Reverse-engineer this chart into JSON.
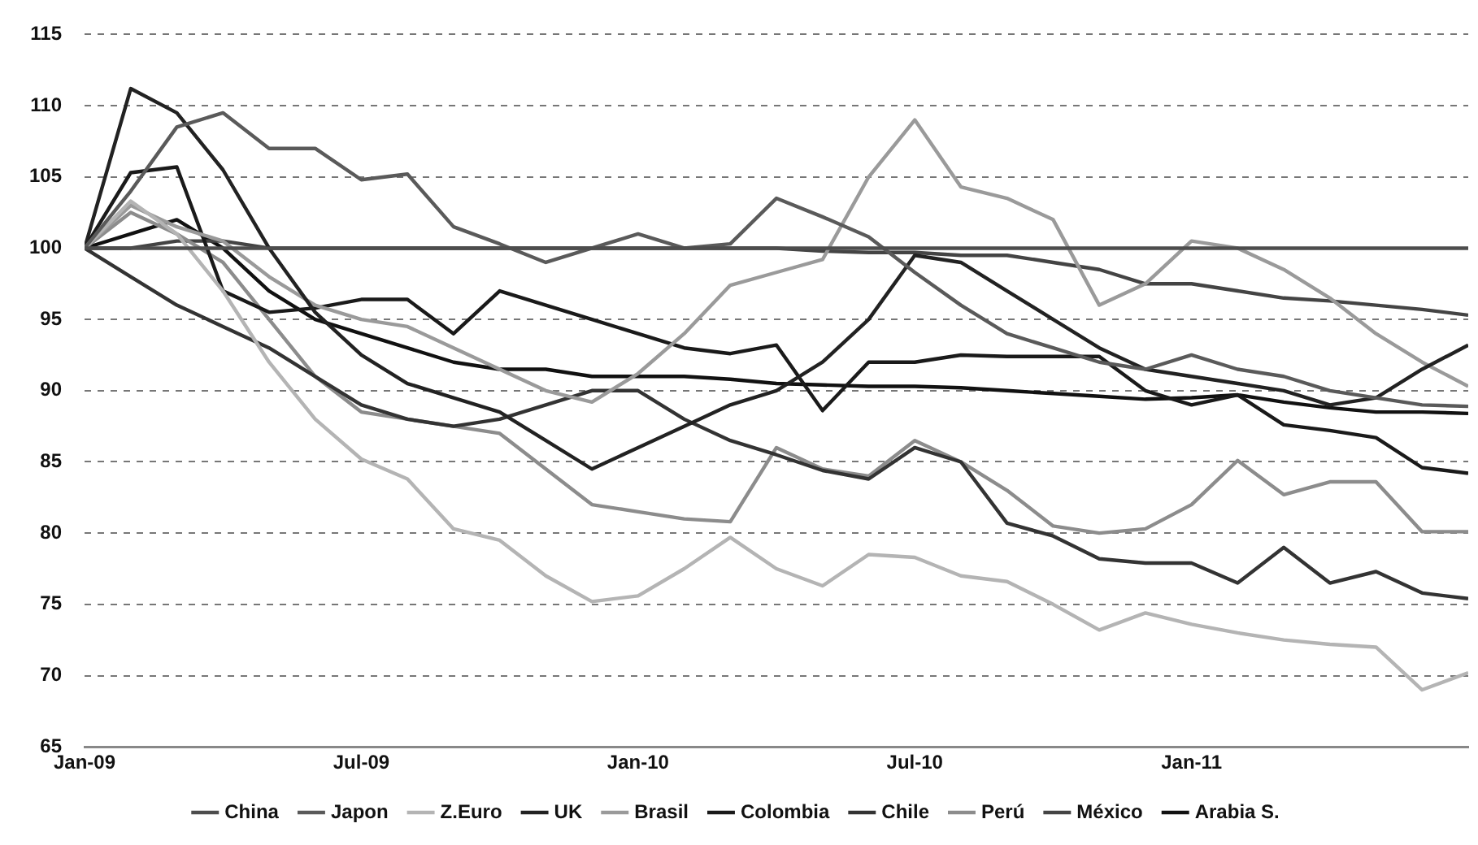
{
  "chart_data": {
    "type": "line",
    "x": [
      "2009-01",
      "2009-02",
      "2009-03",
      "2009-04",
      "2009-05",
      "2009-06",
      "2009-07",
      "2009-08",
      "2009-09",
      "2009-10",
      "2009-11",
      "2009-12",
      "2010-01",
      "2010-02",
      "2010-03",
      "2010-04",
      "2010-05",
      "2010-06",
      "2010-07",
      "2010-08",
      "2010-09",
      "2010-10",
      "2010-11",
      "2010-12",
      "2011-01",
      "2011-02",
      "2011-03",
      "2011-04",
      "2011-05",
      "2011-06",
      "2011-07"
    ],
    "series": [
      {
        "name": "China",
        "color": "#4d4d4d",
        "values": [
          100,
          100,
          100,
          100,
          100,
          100,
          100,
          100,
          100,
          100,
          100,
          100,
          100,
          100,
          100,
          100,
          100,
          100,
          100,
          100,
          100,
          100,
          100,
          100,
          100,
          100,
          100,
          100,
          100,
          100,
          100
        ]
      },
      {
        "name": "Japon",
        "color": "#5a5a5a",
        "values": [
          100,
          104,
          108.5,
          109.5,
          107,
          107,
          104.8,
          105.2,
          101.5,
          100.3,
          99,
          100,
          101,
          100,
          100.3,
          103.5,
          102.2,
          100.8,
          98.3,
          96,
          94,
          93,
          92,
          91.5,
          92.5,
          91.5,
          91,
          90,
          89.5,
          89,
          88.9
        ]
      },
      {
        "name": "Z.Euro",
        "color": "#b4b4b4",
        "values": [
          100,
          103.3,
          101,
          97,
          92,
          88,
          85.2,
          83.8,
          80.3,
          79.5,
          77,
          75.2,
          75.6,
          77.5,
          79.7,
          77.5,
          76.3,
          78.5,
          78.3,
          77,
          76.6,
          75,
          73.2,
          74.4,
          73.6,
          73,
          72.5,
          72.2,
          72,
          69,
          70.2
        ]
      },
      {
        "name": "UK",
        "color": "#222222",
        "values": [
          100,
          111.2,
          109.5,
          105.5,
          100,
          95.5,
          92.5,
          90.5,
          89.5,
          88.5,
          86.5,
          84.5,
          86,
          87.5,
          89,
          90,
          92,
          95,
          99.5,
          99,
          97,
          95,
          93,
          91.5,
          91,
          90.5,
          90,
          89,
          89.5,
          91.5,
          93.2
        ]
      },
      {
        "name": "Brasil",
        "color": "#9a9a9a",
        "values": [
          100,
          103,
          101.5,
          100.5,
          98,
          96,
          95,
          94.5,
          93,
          91.5,
          90,
          89.2,
          91.2,
          94,
          97.4,
          98.3,
          99.2,
          105,
          109,
          104.3,
          103.5,
          102,
          96,
          97.5,
          100.5,
          100,
          98.5,
          96.5,
          94,
          92,
          90.3
        ]
      },
      {
        "name": "Colombia",
        "color": "#1a1a1a",
        "values": [
          100,
          105.3,
          105.7,
          97,
          95.5,
          95.8,
          96.4,
          96.4,
          94,
          97,
          96,
          95,
          94,
          93,
          92.6,
          93.2,
          88.6,
          92,
          92,
          92.5,
          92.4,
          92.4,
          92.4,
          90,
          89,
          89.7,
          87.6,
          87.2,
          86.7,
          84.6,
          84.2
        ]
      },
      {
        "name": "Chile",
        "color": "#333333",
        "values": [
          100,
          98,
          96,
          94.5,
          93,
          91,
          89,
          88,
          87.5,
          88,
          89,
          90,
          90,
          88,
          86.5,
          85.5,
          84.4,
          83.8,
          86,
          85,
          80.7,
          79.8,
          78.2,
          77.9,
          77.9,
          76.5,
          79,
          76.5,
          77.3,
          75.8,
          75.4
        ]
      },
      {
        "name": "Perú",
        "color": "#8c8c8c",
        "values": [
          100,
          102.5,
          101,
          99,
          95,
          91,
          88.5,
          88,
          87.5,
          87,
          84.5,
          82,
          81.5,
          81,
          80.8,
          86,
          84.5,
          84,
          86.5,
          85,
          83,
          80.5,
          80,
          80.3,
          82,
          85.1,
          82.7,
          83.6,
          83.6,
          80.1,
          80.1
        ]
      },
      {
        "name": "México",
        "color": "#444444",
        "values": [
          100,
          100,
          100.5,
          100.5,
          100,
          100,
          100,
          100,
          100,
          100,
          100,
          100,
          100,
          100,
          100,
          100,
          99.8,
          99.7,
          99.7,
          99.5,
          99.5,
          99,
          98.5,
          97.5,
          97.5,
          97,
          96.5,
          96.3,
          96,
          95.7,
          95.3
        ]
      },
      {
        "name": "Arabia S.",
        "color": "#111111",
        "values": [
          100,
          101,
          102,
          100,
          97,
          95,
          94,
          93,
          92,
          91.5,
          91.5,
          91,
          91,
          91,
          90.8,
          90.5,
          90.4,
          90.3,
          90.3,
          90.2,
          90,
          89.8,
          89.6,
          89.4,
          89.5,
          89.7,
          89.2,
          88.8,
          88.5,
          88.5,
          88.4
        ]
      }
    ],
    "xlim": [
      "2009-01",
      "2011-07"
    ],
    "xticks": [
      {
        "value": "2009-01",
        "label": "Jan-09"
      },
      {
        "value": "2009-07",
        "label": "Jul-09"
      },
      {
        "value": "2010-01",
        "label": "Jan-10"
      },
      {
        "value": "2010-07",
        "label": "Jul-10"
      },
      {
        "value": "2011-01",
        "label": "Jan-11"
      }
    ],
    "ylim": [
      65,
      115
    ],
    "yticks": [
      65,
      70,
      75,
      80,
      85,
      90,
      95,
      100,
      105,
      110,
      115
    ],
    "grid": "y",
    "legend": "bottom",
    "marker": "none",
    "line_style": "solid"
  }
}
